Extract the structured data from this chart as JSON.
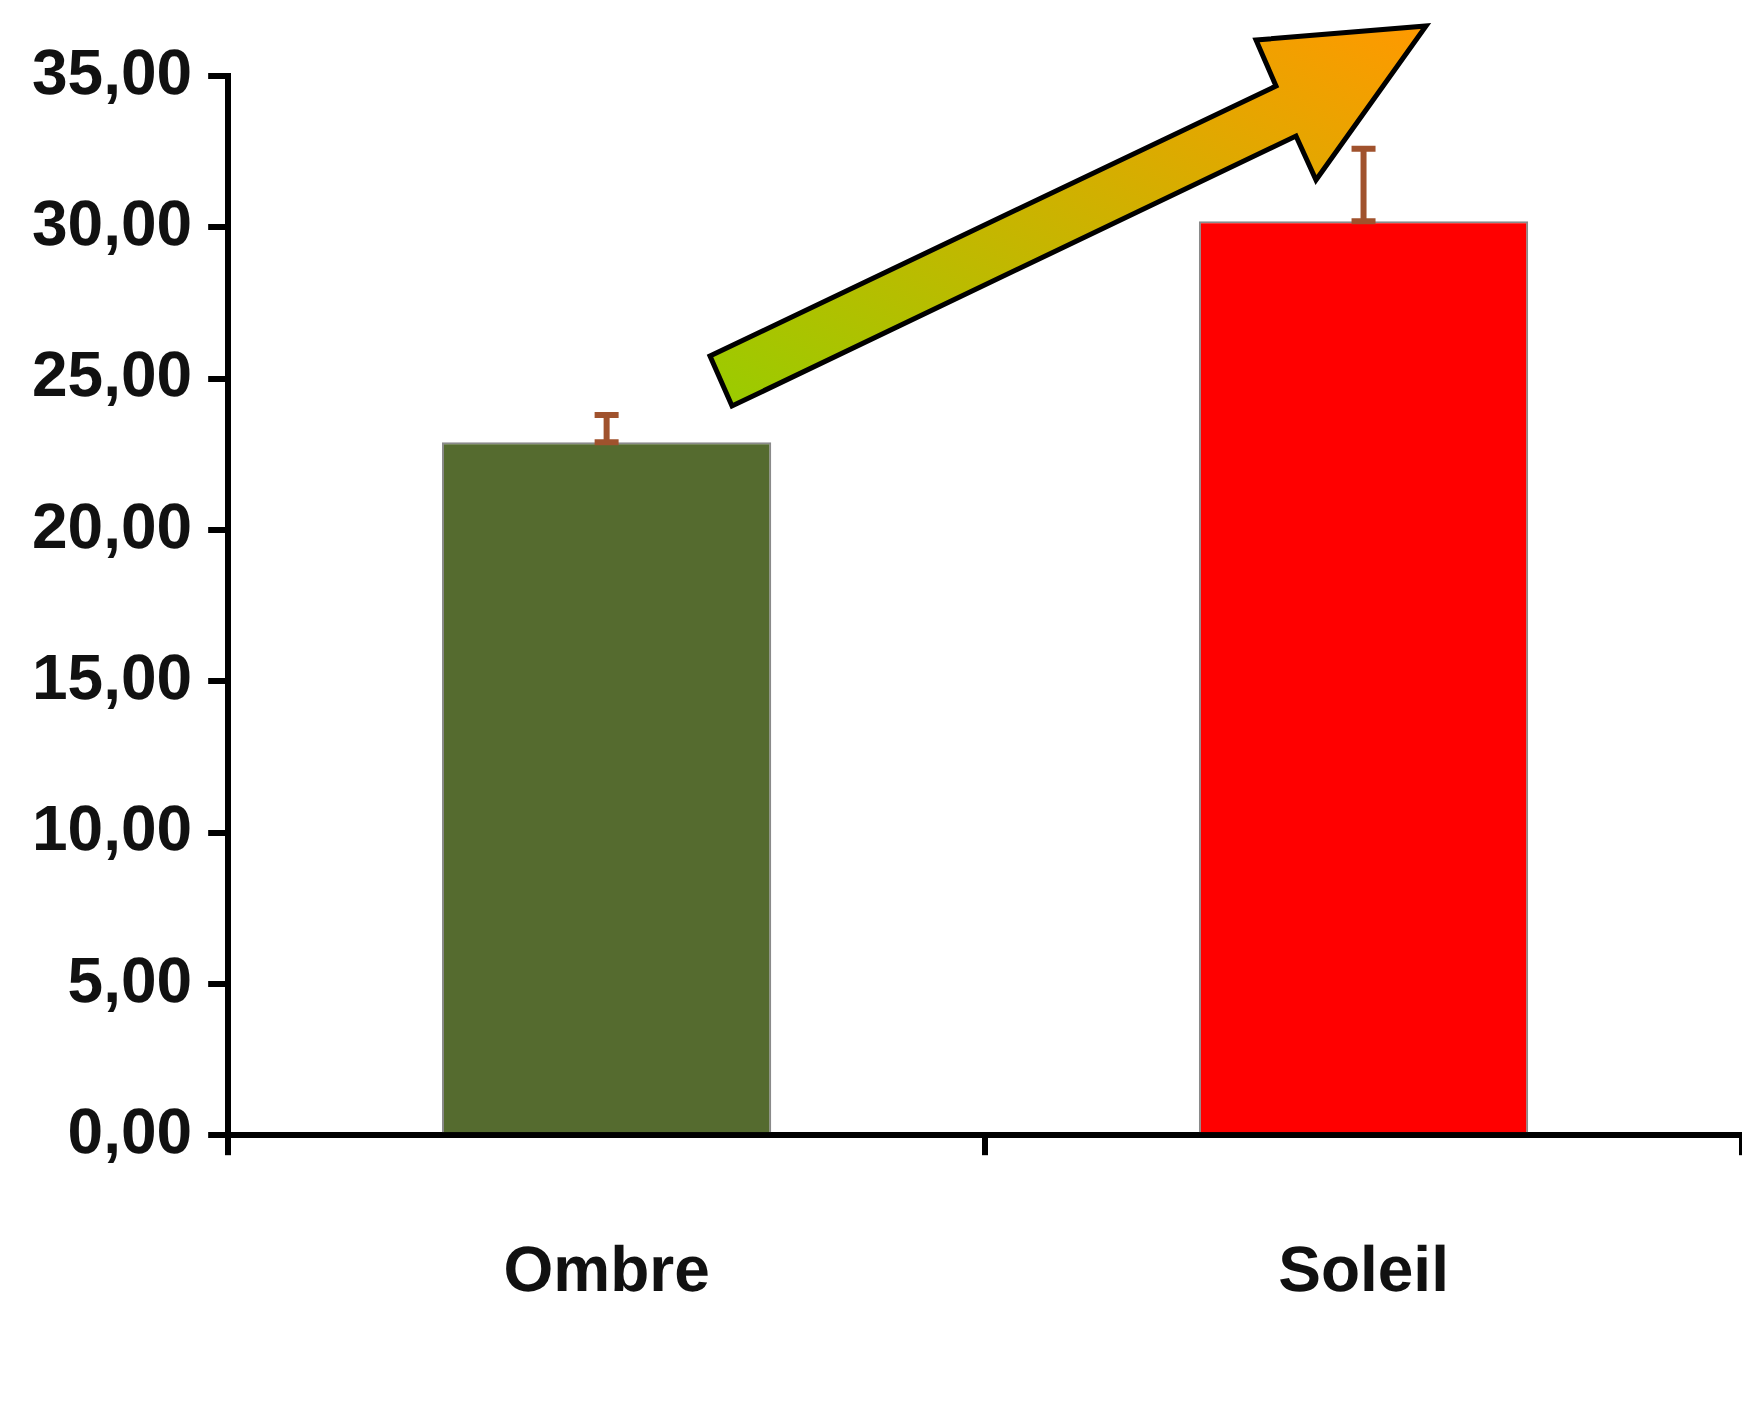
{
  "chart_data": {
    "type": "bar",
    "categories": [
      "Ombre",
      "Soleil"
    ],
    "values": [
      22.9,
      30.2
    ],
    "colors": [
      "#556b2f",
      "#ff0000"
    ],
    "errors": [
      [
        22.9,
        23.8
      ],
      [
        30.2,
        32.6
      ]
    ],
    "ylim": [
      0,
      35
    ],
    "yticks": [
      {
        "value": 0,
        "label": "0,00"
      },
      {
        "value": 5,
        "label": "5,00"
      },
      {
        "value": 10,
        "label": "10,00"
      },
      {
        "value": 15,
        "label": "15,00"
      },
      {
        "value": 20,
        "label": "20,00"
      },
      {
        "value": 25,
        "label": "25,00"
      },
      {
        "value": 30,
        "label": "30,00"
      },
      {
        "value": 35,
        "label": "35,00"
      }
    ],
    "grid": false,
    "legend": false
  }
}
